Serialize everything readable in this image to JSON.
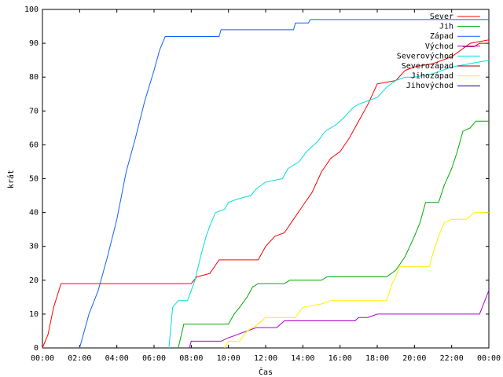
{
  "chart_data": {
    "type": "line",
    "title": "",
    "xlabel": "Čas",
    "ylabel": "krát",
    "xlim": [
      0,
      24
    ],
    "ylim": [
      0,
      100
    ],
    "x_ticks": [
      {
        "value": 0,
        "label": "00:00"
      },
      {
        "value": 2,
        "label": "02:00"
      },
      {
        "value": 4,
        "label": "04:00"
      },
      {
        "value": 6,
        "label": "06:00"
      },
      {
        "value": 8,
        "label": "08:00"
      },
      {
        "value": 10,
        "label": "10:00"
      },
      {
        "value": 12,
        "label": "12:00"
      },
      {
        "value": 14,
        "label": "14:00"
      },
      {
        "value": 16,
        "label": "16:00"
      },
      {
        "value": 18,
        "label": "18:00"
      },
      {
        "value": 20,
        "label": "20:00"
      },
      {
        "value": 22,
        "label": "22:00"
      },
      {
        "value": 24,
        "label": "00:00"
      }
    ],
    "y_ticks": [
      0,
      10,
      20,
      30,
      40,
      50,
      60,
      70,
      80,
      90,
      100
    ],
    "grid": false,
    "legend_position": "top-right",
    "series": [
      {
        "name": "Sever",
        "color": "#ff0000",
        "points": [
          [
            0,
            0
          ],
          [
            0.3,
            4
          ],
          [
            0.6,
            12
          ],
          [
            1,
            19
          ],
          [
            8,
            19
          ],
          [
            8.3,
            21
          ],
          [
            9,
            22
          ],
          [
            9.5,
            26
          ],
          [
            11.6,
            26
          ],
          [
            12,
            30
          ],
          [
            12.5,
            33
          ],
          [
            13,
            34
          ],
          [
            13.5,
            38
          ],
          [
            14,
            42
          ],
          [
            14.5,
            46
          ],
          [
            15,
            52
          ],
          [
            15.5,
            56
          ],
          [
            16,
            58
          ],
          [
            16.5,
            62
          ],
          [
            17,
            67
          ],
          [
            17.5,
            72
          ],
          [
            18,
            78
          ],
          [
            19,
            79
          ],
          [
            19.5,
            82
          ],
          [
            20,
            83
          ],
          [
            21,
            84
          ],
          [
            22,
            86
          ],
          [
            23,
            90
          ],
          [
            24,
            91
          ]
        ]
      },
      {
        "name": "Jih",
        "color": "#00aa00",
        "points": [
          [
            7.3,
            0
          ],
          [
            7.6,
            7
          ],
          [
            10,
            7
          ],
          [
            10.3,
            10
          ],
          [
            10.6,
            12
          ],
          [
            11,
            15
          ],
          [
            11.3,
            18
          ],
          [
            11.6,
            19
          ],
          [
            13,
            19
          ],
          [
            13.3,
            20
          ],
          [
            15,
            20
          ],
          [
            15.3,
            21
          ],
          [
            18.5,
            21
          ],
          [
            19,
            23
          ],
          [
            19.5,
            27
          ],
          [
            20,
            33
          ],
          [
            20.3,
            37
          ],
          [
            20.6,
            43
          ],
          [
            21.3,
            43
          ],
          [
            21.6,
            48
          ],
          [
            22,
            53
          ],
          [
            22.3,
            58
          ],
          [
            22.6,
            64
          ],
          [
            23,
            65
          ],
          [
            23.3,
            67
          ],
          [
            24,
            67
          ]
        ]
      },
      {
        "name": "Západ",
        "color": "#1060ff",
        "points": [
          [
            2,
            0
          ],
          [
            2.5,
            10
          ],
          [
            3,
            17
          ],
          [
            3.5,
            27
          ],
          [
            4,
            38
          ],
          [
            4.5,
            52
          ],
          [
            5,
            62
          ],
          [
            5.5,
            73
          ],
          [
            6,
            82
          ],
          [
            6.3,
            88
          ],
          [
            6.6,
            92
          ],
          [
            9.5,
            92
          ],
          [
            9.6,
            94
          ],
          [
            13.5,
            94
          ],
          [
            13.6,
            96
          ],
          [
            14.3,
            96
          ],
          [
            14.4,
            97
          ],
          [
            24,
            97
          ]
        ]
      },
      {
        "name": "Východ",
        "color": "#aa00cc",
        "points": [
          [
            7.9,
            0
          ],
          [
            8,
            2
          ],
          [
            9.6,
            2
          ],
          [
            10,
            3
          ],
          [
            10.5,
            4
          ],
          [
            11,
            5
          ],
          [
            11.5,
            6
          ],
          [
            12.6,
            6
          ],
          [
            13,
            8
          ],
          [
            16.8,
            8
          ],
          [
            17,
            9
          ],
          [
            17.5,
            9
          ],
          [
            18,
            10
          ],
          [
            23.5,
            10
          ],
          [
            24,
            17
          ]
        ]
      },
      {
        "name": "Severovýchod",
        "color": "#00dddd",
        "points": [
          [
            6.8,
            0
          ],
          [
            7,
            12
          ],
          [
            7.3,
            14
          ],
          [
            7.8,
            14
          ],
          [
            8.2,
            20
          ],
          [
            8.5,
            27
          ],
          [
            8.8,
            33
          ],
          [
            9,
            36
          ],
          [
            9.3,
            40
          ],
          [
            9.8,
            41
          ],
          [
            10,
            43
          ],
          [
            10.5,
            44
          ],
          [
            11.2,
            45
          ],
          [
            11.5,
            47
          ],
          [
            12,
            49
          ],
          [
            12.9,
            50
          ],
          [
            13.2,
            53
          ],
          [
            13.8,
            55
          ],
          [
            14.2,
            58
          ],
          [
            14.8,
            61
          ],
          [
            15.2,
            64
          ],
          [
            15.8,
            66
          ],
          [
            16.2,
            68
          ],
          [
            16.7,
            71
          ],
          [
            17,
            72
          ],
          [
            17.5,
            73
          ],
          [
            18,
            74
          ],
          [
            18.5,
            77
          ],
          [
            19,
            79
          ],
          [
            19.5,
            80
          ],
          [
            20,
            80
          ],
          [
            21,
            81
          ],
          [
            22,
            83
          ],
          [
            23,
            84
          ],
          [
            24,
            85
          ]
        ]
      },
      {
        "name": "Severozápad",
        "color": "#aa0000",
        "points": [
          [
            22.6,
            89
          ],
          [
            23.2,
            89
          ],
          [
            23.5,
            90
          ],
          [
            24,
            90
          ]
        ]
      },
      {
        "name": "Jihozápad",
        "color": "#ffee00",
        "points": [
          [
            9.8,
            0
          ],
          [
            10,
            2
          ],
          [
            10.6,
            2
          ],
          [
            11,
            5
          ],
          [
            11.6,
            7
          ],
          [
            12,
            9
          ],
          [
            13.6,
            9
          ],
          [
            14,
            12
          ],
          [
            15,
            13
          ],
          [
            15.5,
            14
          ],
          [
            18.5,
            14
          ],
          [
            18.8,
            19
          ],
          [
            19,
            21
          ],
          [
            19.2,
            24
          ],
          [
            20.8,
            24
          ],
          [
            21,
            28
          ],
          [
            21.3,
            33
          ],
          [
            21.6,
            37
          ],
          [
            22,
            38
          ],
          [
            22.8,
            38
          ],
          [
            23.2,
            40
          ],
          [
            24,
            40
          ]
        ]
      },
      {
        "name": "Jihovýchod",
        "color": "#000099",
        "points": []
      }
    ]
  }
}
